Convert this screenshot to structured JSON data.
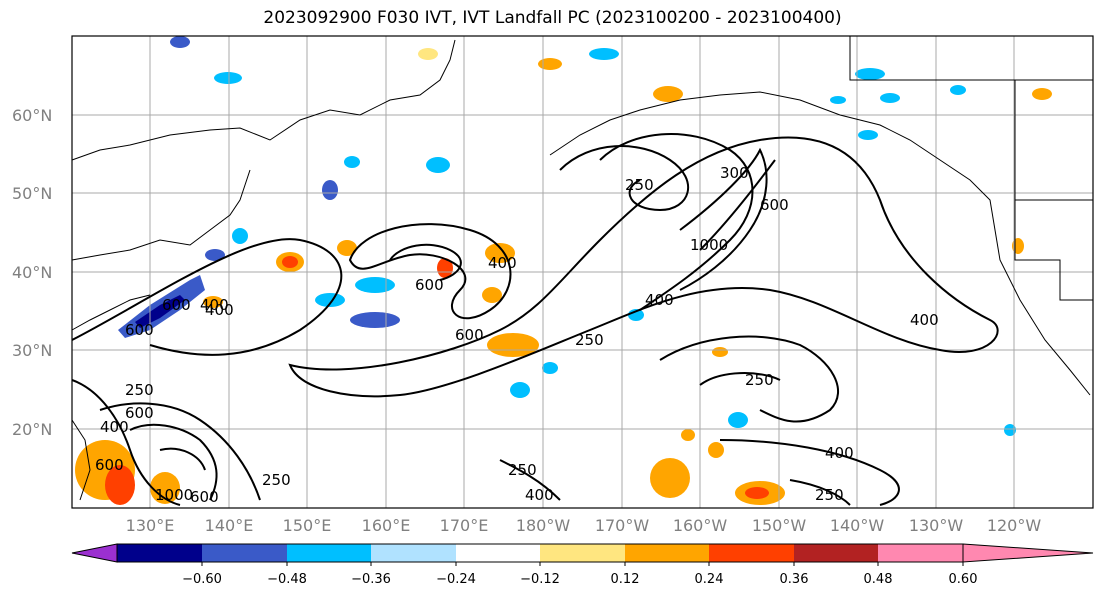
{
  "title": "2023092900 F030 IVT, IVT Landfall PC (2023100200 - 2023100400)",
  "map": {
    "lat_labels": [
      "60°N",
      "50°N",
      "40°N",
      "30°N",
      "20°N"
    ],
    "lon_labels": [
      "130°E",
      "140°E",
      "150°E",
      "160°E",
      "170°E",
      "180°W",
      "170°W",
      "160°W",
      "150°W",
      "140°W",
      "130°W",
      "120°W"
    ],
    "contour_labels": [
      "250",
      "300",
      "600",
      "1000",
      "400",
      "600",
      "600",
      "400",
      "250",
      "400",
      "400",
      "250",
      "400",
      "250",
      "250",
      "400",
      "600",
      "400",
      "250",
      "1000",
      "600",
      "250",
      "400",
      "600",
      "600",
      "600"
    ]
  },
  "colorbar": {
    "ticks": [
      "−0.60",
      "−0.48",
      "−0.36",
      "−0.24",
      "−0.12",
      "0.12",
      "0.24",
      "0.36",
      "0.48",
      "0.60"
    ],
    "colors": [
      "#9b30d0",
      "#00008b",
      "#3a5ac8",
      "#00bfff",
      "#b0e2ff",
      "#ffffff",
      "#ffe680",
      "#ffa500",
      "#ff4000",
      "#b22222",
      "#ff88b0"
    ]
  }
}
